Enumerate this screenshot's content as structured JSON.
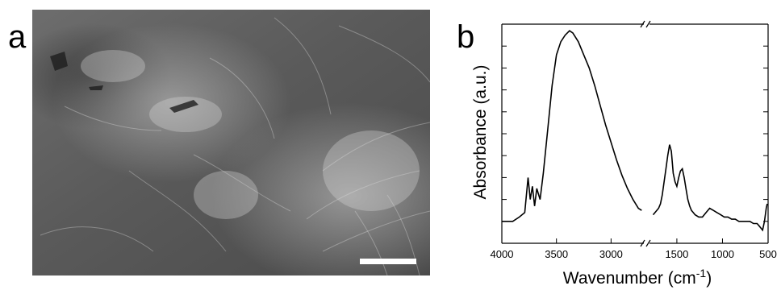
{
  "panels": {
    "a": {
      "letter": "a",
      "image": "SEM micrograph with white scale bar"
    },
    "b": {
      "letter": "b"
    }
  },
  "chart_data": {
    "type": "line",
    "xlabel_main": "Wavenumber (cm",
    "xlabel_sup": "-1",
    "xlabel_end": ")",
    "ylabel": "Absorbance (a.u.)",
    "x_axis": "reversed, broken between 2700 and 1800",
    "xlim_left_segment": [
      4000,
      2700
    ],
    "xlim_right_segment": [
      1800,
      500
    ],
    "xticks": [
      4000,
      3500,
      3000,
      1500,
      1000,
      500
    ],
    "xtick_labels": [
      "4000",
      "3500",
      "3000",
      "1500",
      "1000",
      "500"
    ],
    "yticks_labeled": false,
    "grid": false,
    "ylim": [
      0,
      1
    ],
    "series": [
      {
        "x": [
          4000,
          3960,
          3900,
          3840,
          3790,
          3760,
          3740,
          3720,
          3700,
          3680,
          3650,
          3620,
          3580,
          3540,
          3500,
          3460,
          3420,
          3380,
          3350,
          3300,
          3250,
          3200,
          3150,
          3100,
          3050,
          3000,
          2950,
          2900,
          2850,
          2800,
          2750,
          2720,
          1760,
          1720,
          1700,
          1680,
          1660,
          1640,
          1620,
          1600,
          1580,
          1560,
          1540,
          1520,
          1500,
          1480,
          1460,
          1440,
          1420,
          1400,
          1380,
          1360,
          1340,
          1320,
          1300,
          1260,
          1220,
          1180,
          1140,
          1100,
          1060,
          1020,
          980,
          940,
          900,
          860,
          820,
          780,
          740,
          700,
          660,
          620,
          600,
          580,
          560,
          540,
          520,
          510
        ],
        "y": [
          0.1,
          0.1,
          0.1,
          0.12,
          0.14,
          0.3,
          0.2,
          0.26,
          0.17,
          0.25,
          0.2,
          0.32,
          0.52,
          0.72,
          0.86,
          0.92,
          0.95,
          0.97,
          0.96,
          0.92,
          0.86,
          0.8,
          0.72,
          0.63,
          0.54,
          0.46,
          0.38,
          0.31,
          0.25,
          0.2,
          0.16,
          0.15,
          0.13,
          0.15,
          0.16,
          0.18,
          0.22,
          0.28,
          0.34,
          0.4,
          0.45,
          0.42,
          0.32,
          0.28,
          0.26,
          0.3,
          0.33,
          0.34,
          0.3,
          0.25,
          0.2,
          0.17,
          0.15,
          0.14,
          0.13,
          0.12,
          0.12,
          0.14,
          0.16,
          0.15,
          0.14,
          0.13,
          0.12,
          0.12,
          0.11,
          0.11,
          0.1,
          0.1,
          0.1,
          0.1,
          0.09,
          0.09,
          0.08,
          0.07,
          0.06,
          0.1,
          0.16,
          0.18
        ]
      }
    ]
  }
}
